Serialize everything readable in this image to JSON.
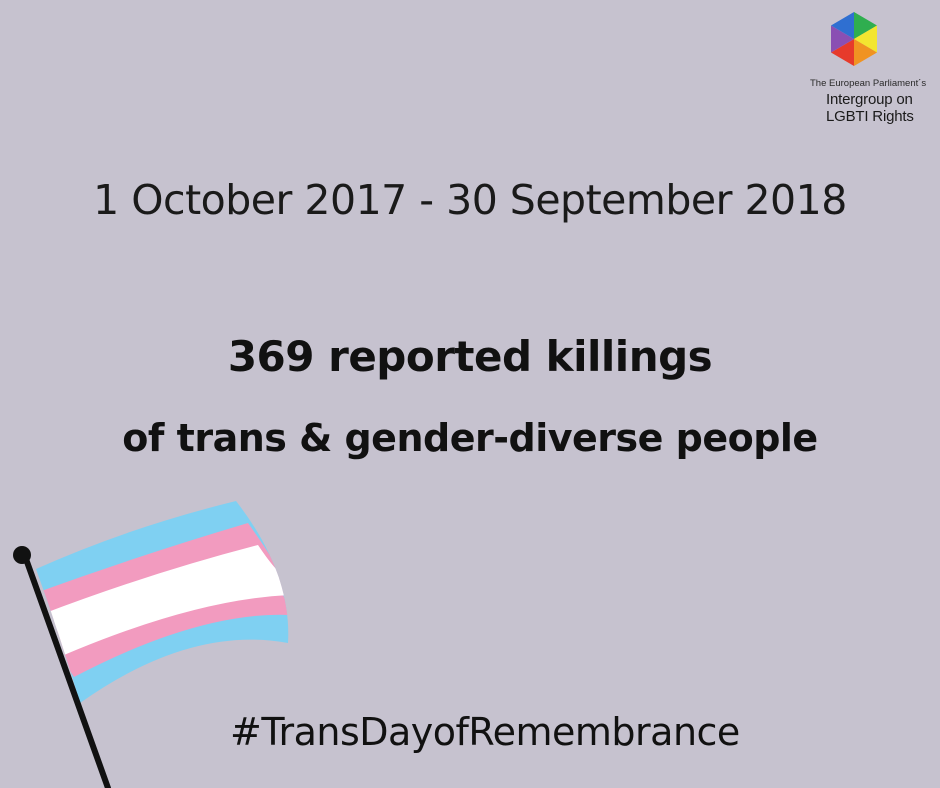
{
  "logo": {
    "line1": "The European Parliament´s",
    "line2": "Intergroup on",
    "line3": "LGBTI Rights",
    "colors": [
      "#8a4fb3",
      "#2f6fd1",
      "#2fae4f",
      "#f3e630",
      "#e63a2b",
      "#f09322"
    ]
  },
  "date_range": "1 October 2017 - 30 September 2018",
  "headline": {
    "line1": "369 reported killings",
    "line2": "of trans & gender-diverse people"
  },
  "hashtag": "#TransDayofRemembrance",
  "flag": {
    "icon": "trans-pride-flag-icon",
    "colors": {
      "blue": "#7fd0f2",
      "pink": "#f29bbf",
      "white": "#ffffff",
      "pole": "#111111"
    }
  },
  "background_color": "#c6c2cf"
}
